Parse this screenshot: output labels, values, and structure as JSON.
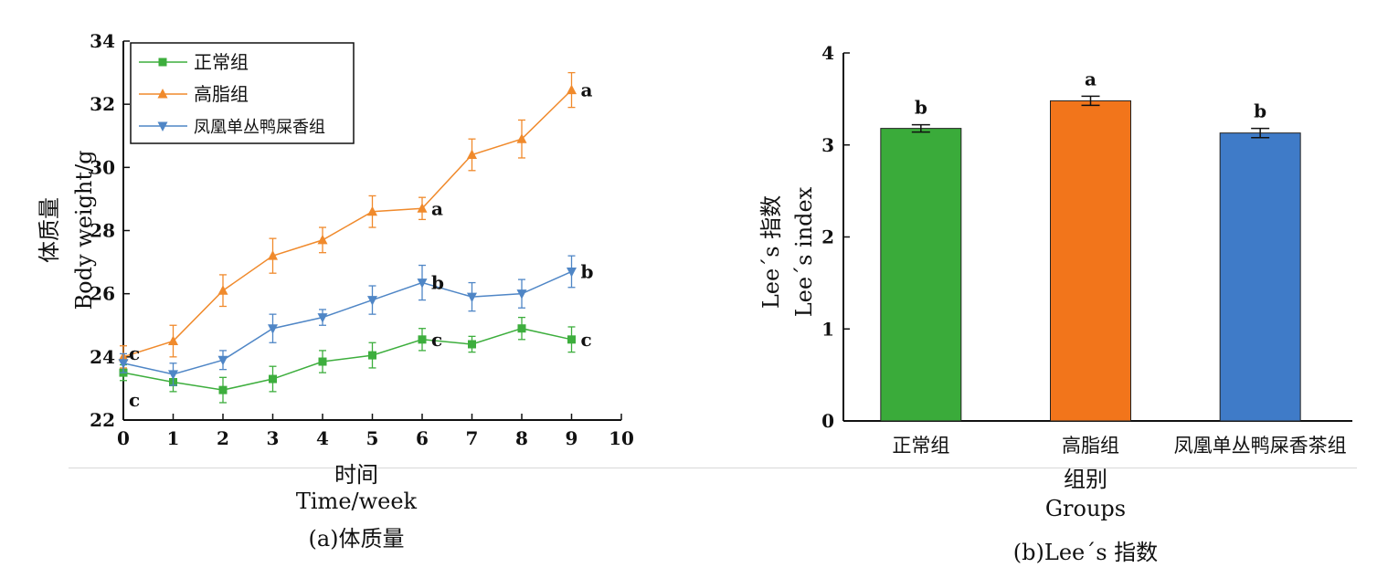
{
  "panel_a": {
    "caption": "(a)体质量",
    "xlabel_cn": "时间",
    "xlabel_en": "Time/week",
    "ylabel_cn": "体质量",
    "ylabel_en": "Body weight/g"
  },
  "panel_b": {
    "caption": "(b)Lee´s 指数",
    "xlabel_cn": "组别",
    "xlabel_en": "Groups",
    "ylabel_cn": "Lee´s 指数",
    "ylabel_en": "Lee´s index"
  },
  "chart_data": [
    {
      "type": "line",
      "xlabel": "时间 Time/week",
      "ylabel": "体质量 Body weight/g",
      "xlim": [
        0,
        10
      ],
      "ylim": [
        22,
        34
      ],
      "xticks": [
        0,
        1,
        2,
        3,
        4,
        5,
        6,
        7,
        8,
        9,
        10
      ],
      "yticks": [
        22,
        24,
        26,
        28,
        30,
        32,
        34
      ],
      "x": [
        0,
        1,
        2,
        3,
        4,
        5,
        6,
        7,
        8,
        9
      ],
      "legend_position": "top-left",
      "grid": false,
      "series": [
        {
          "name": "正常组",
          "color": "#3dae3d",
          "marker": "square",
          "values": [
            23.5,
            23.2,
            22.95,
            23.3,
            23.85,
            24.05,
            24.55,
            24.4,
            24.9,
            24.55
          ],
          "errors": [
            0.25,
            0.3,
            0.4,
            0.4,
            0.35,
            0.4,
            0.35,
            0.25,
            0.35,
            0.4
          ],
          "labels": [
            {
              "x": 0,
              "text": "c"
            },
            {
              "x": 6,
              "text": "c"
            },
            {
              "x": 9,
              "text": "c"
            }
          ]
        },
        {
          "name": "高脂组",
          "color": "#f08a2c",
          "marker": "triangle-up",
          "values": [
            24.0,
            24.5,
            26.1,
            27.2,
            27.7,
            28.6,
            28.7,
            30.4,
            30.9,
            32.45
          ],
          "errors": [
            0.35,
            0.5,
            0.5,
            0.55,
            0.4,
            0.5,
            0.35,
            0.5,
            0.6,
            0.55
          ],
          "labels": [
            {
              "x": 6,
              "text": "a"
            },
            {
              "x": 9,
              "text": "a"
            }
          ]
        },
        {
          "name": "凤凰单丛鸭屎香组",
          "color": "#4f86c6",
          "marker": "triangle-down",
          "values": [
            23.8,
            23.45,
            23.9,
            24.9,
            25.25,
            25.8,
            26.35,
            25.9,
            26.0,
            26.7
          ],
          "errors": [
            0.3,
            0.35,
            0.3,
            0.45,
            0.25,
            0.45,
            0.55,
            0.45,
            0.45,
            0.5
          ],
          "labels": [
            {
              "x": 0,
              "text": "c"
            },
            {
              "x": 6,
              "text": "b"
            },
            {
              "x": 9,
              "text": "b"
            }
          ]
        }
      ]
    },
    {
      "type": "bar",
      "xlabel": "组别 Groups",
      "ylabel": "Lee´s 指数 Lee´s index",
      "ylim": [
        0,
        4
      ],
      "yticks": [
        0,
        1,
        2,
        3,
        4
      ],
      "grid": false,
      "categories": [
        "正常组",
        "高脂组",
        "凤凰单丛鸭屎香茶组"
      ],
      "values": [
        3.18,
        3.48,
        3.13
      ],
      "errors": [
        0.04,
        0.05,
        0.05
      ],
      "colors": [
        "#3aab3a",
        "#f2751b",
        "#3f7bc8"
      ],
      "labels": [
        "b",
        "a",
        "b"
      ]
    }
  ]
}
